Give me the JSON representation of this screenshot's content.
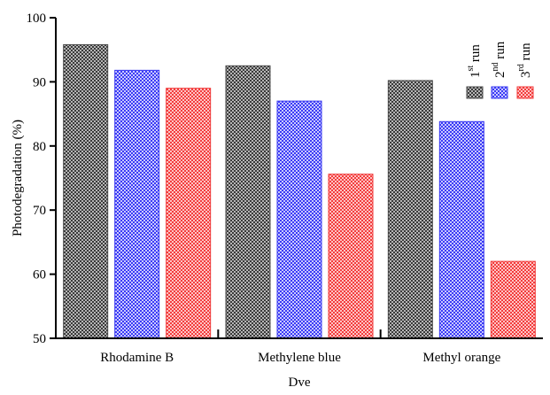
{
  "chart_data": {
    "type": "bar",
    "title": "",
    "xlabel": "Dve",
    "ylabel": "Photodegradation (%)",
    "ylim": [
      50,
      100
    ],
    "yticks": [
      50,
      60,
      70,
      80,
      90,
      100
    ],
    "grid": false,
    "legend_position": "top-right",
    "categories": [
      "Rhodamine B",
      "Methylene blue",
      "Methyl orange"
    ],
    "series": [
      {
        "name": "1st run",
        "label_base": "1",
        "label_sup": "st",
        "label_tail": " run",
        "color": "#4a4a4a",
        "pattern": "checker-gray",
        "values": [
          95.8,
          92.5,
          90.2
        ]
      },
      {
        "name": "2nd run",
        "label_base": "2",
        "label_sup": "nd",
        "label_tail": " run",
        "color": "#3a3af0",
        "pattern": "checker-blue",
        "values": [
          91.8,
          87.0,
          83.8
        ]
      },
      {
        "name": "3rd run",
        "label_base": "3",
        "label_sup": "rd",
        "label_tail": " run",
        "color": "#f03a3a",
        "pattern": "checker-red",
        "values": [
          89.0,
          75.6,
          62.0
        ]
      }
    ]
  }
}
